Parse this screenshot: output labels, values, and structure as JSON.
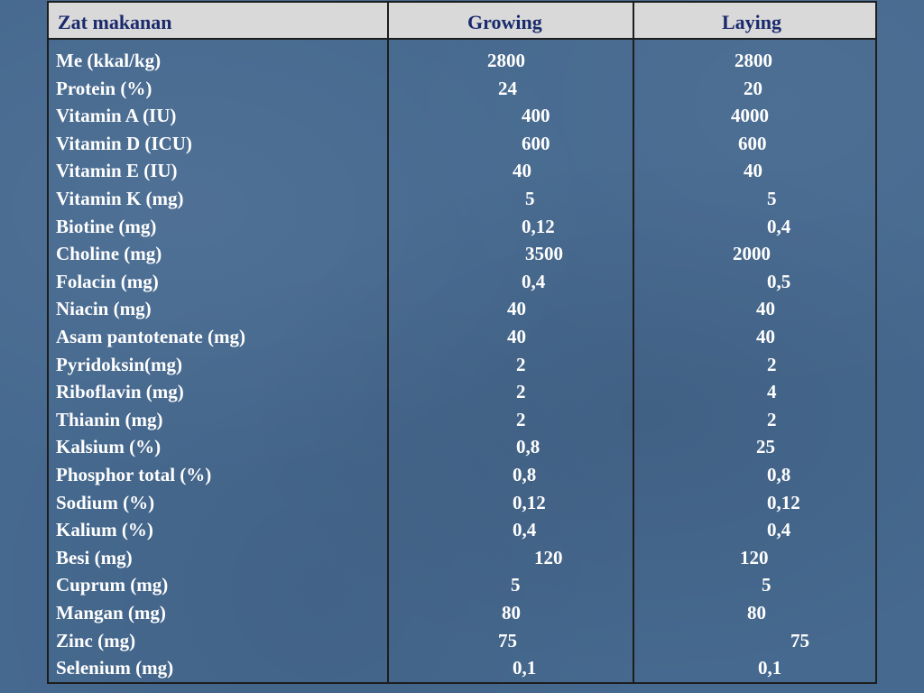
{
  "table": {
    "headers": [
      "Zat makanan",
      "Growing",
      "Laying"
    ],
    "rows": [
      [
        "Me (kkal/kg)",
        "2800",
        "2800"
      ],
      [
        "Protein (%)",
        "24",
        "20"
      ],
      [
        "Vitamin A (IU)",
        "400",
        "4000"
      ],
      [
        "Vitamin D  (ICU)",
        "600",
        "600"
      ],
      [
        "Vitamin E (IU)",
        "40",
        "40"
      ],
      [
        "Vitamin K (mg)",
        "5",
        "5"
      ],
      [
        "Biotine (mg)",
        "0,12",
        "0,4"
      ],
      [
        "Choline (mg)",
        "3500",
        "2000"
      ],
      [
        "Folacin (mg)",
        "0,4",
        "0,5"
      ],
      [
        "Niacin (mg)",
        "40",
        "40"
      ],
      [
        "Asam pantotenate (mg)",
        "40",
        "40"
      ],
      [
        "Pyridoksin(mg)",
        "2",
        "2"
      ],
      [
        "Riboflavin (mg)",
        "2",
        "4"
      ],
      [
        "Thianin (mg)",
        "2",
        "2"
      ],
      [
        "Kalsium (%)",
        "0,8",
        "25"
      ],
      [
        "Phosphor total (%)",
        "0,8",
        "0,8"
      ],
      [
        "Sodium (%)",
        "0,12",
        "0,12"
      ],
      [
        "Kalium (%)",
        "0,4",
        "0,4"
      ],
      [
        "Besi (mg)",
        "120",
        "120"
      ],
      [
        "Cuprum (mg)",
        "5",
        "5"
      ],
      [
        "Mangan (mg)",
        "80",
        "80"
      ],
      [
        "Zinc (mg)",
        "75",
        "75"
      ],
      [
        "Selenium (mg)",
        "0,1",
        "0,1"
      ]
    ]
  }
}
